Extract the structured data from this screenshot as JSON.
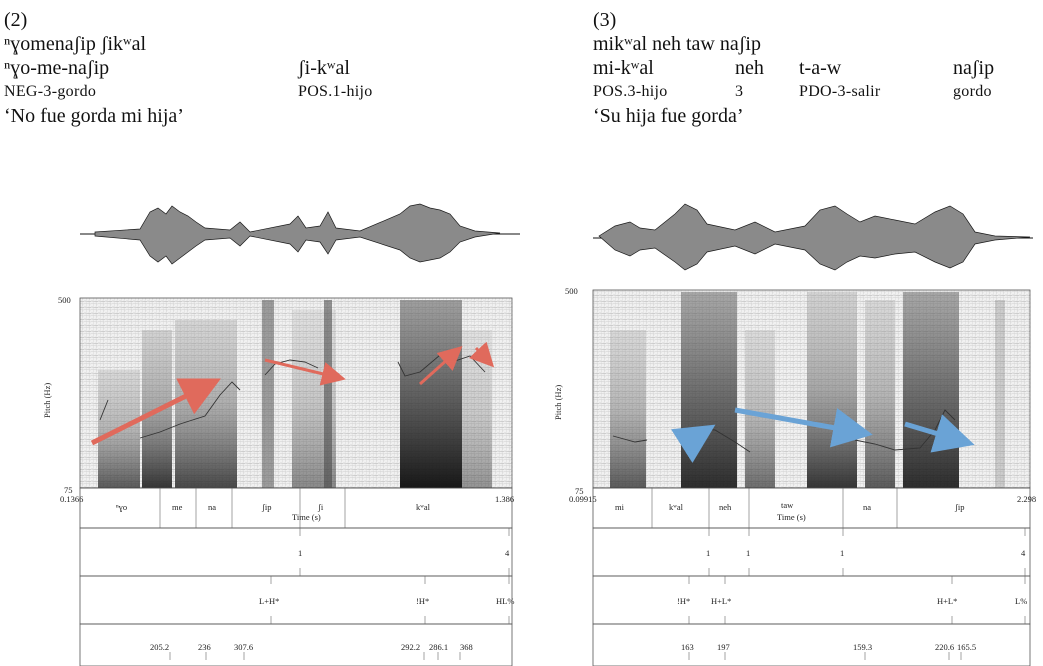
{
  "left": {
    "example_number": "(2)",
    "line1": "ⁿɣomenaʃip ʃikʷal",
    "line2_a": "ⁿɣo-me-naʃip",
    "line2_b": "ʃi-kʷal",
    "line3_a": "NEG-3-gordo",
    "line3_b": "POS.1-hijo",
    "translation": "‘No fue gorda mi hija’",
    "y_max": "500",
    "y_min": "75",
    "y_label": "Pitch (Hz)",
    "time_start": "0.1366",
    "time_end": "1.386",
    "time_label": "Time (s)",
    "words": [
      "ⁿɣo",
      "me",
      "na",
      "ʃip",
      "ʃi",
      "kʷal"
    ],
    "break_indices": [
      "1",
      "4"
    ],
    "tones": [
      "L+H*",
      "!H*",
      "HL%"
    ],
    "f0_values": [
      "205.2",
      "236",
      "307.6",
      "292.2",
      "286.1",
      "368"
    ],
    "arrow_color": "#e06a5c"
  },
  "right": {
    "example_number": "(3)",
    "line1": "mikʷal neh taw naʃip",
    "line2": [
      "mi-kʷal",
      "neh",
      "t-a-w",
      "naʃip"
    ],
    "line3": [
      "POS.3-hijo",
      "3",
      "PDO-3-salir",
      "gordo"
    ],
    "translation": "‘Su hija fue gorda’",
    "y_max": "500",
    "y_min": "75",
    "y_label": "Pitch (Hz)",
    "time_start": "0.09915",
    "time_end": "2.298",
    "time_label": "Time (s)",
    "words": [
      "mi",
      "kʷal",
      "neh",
      "taw",
      "na",
      "ʃip"
    ],
    "break_indices": [
      "1",
      "1",
      "1",
      "4"
    ],
    "tones": [
      "!H*",
      "H+L*",
      "H+L*",
      "L%"
    ],
    "f0_values": [
      "163",
      "197",
      "159.3",
      "220.6",
      "165.5"
    ],
    "arrow_color": "#6aa3d6"
  }
}
